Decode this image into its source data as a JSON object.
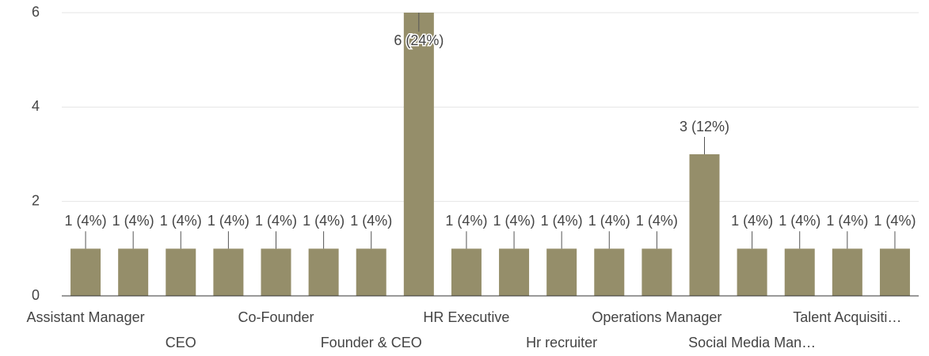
{
  "chart_data": {
    "type": "bar",
    "categories": [
      "Assistant Manager",
      null,
      "CEO",
      null,
      "Co-Founder",
      null,
      "Founder & CEO",
      null,
      "HR Executive",
      null,
      "Hr recruiter",
      null,
      "Operations Manager",
      null,
      "Social Media Man…",
      null,
      "Talent Acquisiti…",
      null
    ],
    "values": [
      1,
      1,
      1,
      1,
      1,
      1,
      1,
      6,
      1,
      1,
      1,
      1,
      1,
      3,
      1,
      1,
      1,
      1
    ],
    "value_labels": [
      "1 (4%)",
      "1 (4%)",
      "1 (4%)",
      "1 (4%)",
      "1 (4%)",
      "1 (4%)",
      "1 (4%)",
      "6 (24%)",
      "1 (4%)",
      "1 (4%)",
      "1 (4%)",
      "1 (4%)",
      "1 (4%)",
      "3 (12%)",
      "1 (4%)",
      "1 (4%)",
      "1 (4%)",
      "1 (4%)"
    ],
    "color": "#958e6a",
    "ylim": [
      0,
      6
    ],
    "yticks": [
      0,
      2,
      4,
      6
    ],
    "grid": true
  }
}
